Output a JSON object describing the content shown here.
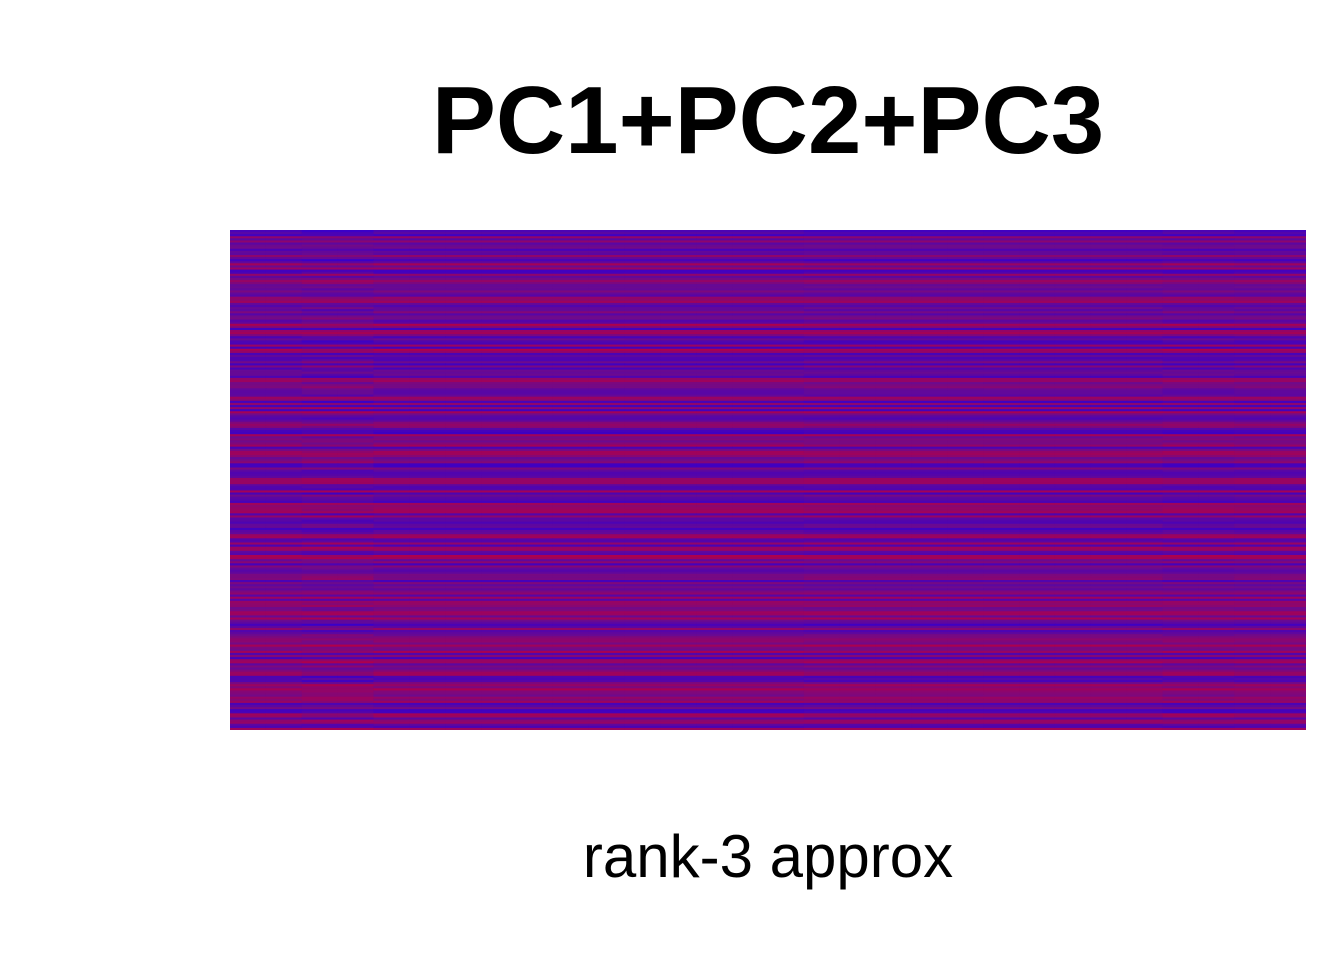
{
  "chart_data": {
    "type": "heatmap",
    "title": "PC1+PC2+PC3",
    "xlabel": "rank-3 approx",
    "ylabel": "",
    "axes_visible": false,
    "legend": "none",
    "grid": false,
    "colormap": {
      "low": "#3a00c8",
      "mid": "#6e0a8c",
      "high": "#b0004a"
    },
    "n_columns": 30,
    "n_rows": 240,
    "column_group_boundaries": [
      2,
      4,
      11,
      16,
      21,
      26,
      28,
      30
    ],
    "row_pattern_seed": 3
  }
}
